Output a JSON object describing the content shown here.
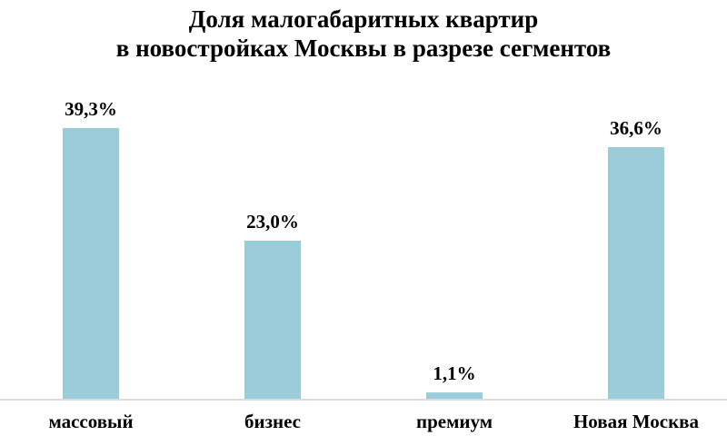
{
  "title": {
    "line1": "Доля малогабаритных квартир",
    "line2": "в новостройках Москвы в разрезе сегментов"
  },
  "chart_data": {
    "type": "bar",
    "title": "Доля малогабаритных квартир в новостройках Москвы в разрезе сегментов",
    "categories": [
      "массовый",
      "бизнес",
      "премиум",
      "Новая Москва"
    ],
    "values": [
      39.3,
      23.0,
      1.1,
      36.6
    ],
    "value_labels": [
      "39,3%",
      "23,0%",
      "1,1%",
      "36,6%"
    ],
    "xlabel": "",
    "ylabel": "",
    "ylim": [
      0,
      40
    ],
    "grid": false,
    "legend": null,
    "colors": {
      "bar_fill": "#9BCCD9",
      "axis_line": "#DCDCDC",
      "text": "#000000",
      "background": "#FFFFFF"
    }
  }
}
